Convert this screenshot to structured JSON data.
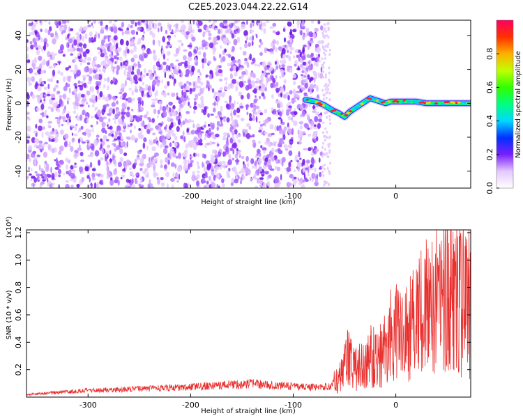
{
  "title": "C2E5.2023.044.22.22.G14",
  "colors": {
    "snr_line": "#e8302e",
    "spectrogram_hue_low": "#8a2be2"
  },
  "chart_data": [
    {
      "type": "heatmap",
      "id": "spectrogram",
      "xlabel": "Height of straight line (km)",
      "ylabel": "Frequency (Hz)",
      "xlim": [
        -360,
        73
      ],
      "ylim": [
        -50,
        49
      ],
      "x_ticks": [
        -300,
        -200,
        -100,
        0
      ],
      "y_ticks": [
        -40,
        -20,
        0,
        20,
        40
      ],
      "noise_region_end_km": -72,
      "signal_track": {
        "x": [
          -88,
          -78,
          -70,
          -62,
          -55,
          -50,
          -45,
          -40,
          -35,
          -30,
          -25,
          -20,
          -15,
          -10,
          -5,
          0,
          10,
          20,
          30,
          40,
          50,
          60,
          73
        ],
        "y": [
          2,
          1,
          -1,
          -4,
          -6,
          -8,
          -5,
          -3,
          -1,
          1,
          3,
          2,
          1,
          0,
          1,
          1,
          1,
          1,
          0,
          0,
          0,
          0,
          0
        ]
      },
      "grid": false
    },
    {
      "type": "colorbar",
      "id": "colorbar",
      "label": "Normalized spectral amplitude",
      "range": [
        0.0,
        1.0
      ],
      "ticks": [
        0.0,
        0.2,
        0.4,
        0.6,
        0.8
      ]
    },
    {
      "type": "line",
      "id": "snr",
      "xlabel": "Height of straight line (km)",
      "ylabel": "SNR (10 * v/v)",
      "y_multiplier": "(x10⁴)",
      "xlim": [
        -360,
        73
      ],
      "ylim": [
        0,
        1.22
      ],
      "x_ticks": [
        -300,
        -200,
        -100,
        0
      ],
      "y_ticks": [
        0.2,
        0.4,
        0.6,
        0.8,
        1.0,
        1.2
      ],
      "series": [
        {
          "x": [
            -360,
            -340,
            -320,
            -300,
            -280,
            -260,
            -240,
            -220,
            -200,
            -180,
            -160,
            -140,
            -120,
            -100,
            -80,
            -65,
            -55,
            -50,
            -45,
            -40,
            -35,
            -30,
            -25,
            -20,
            -15,
            -10,
            -5,
            0,
            5,
            10,
            15,
            20,
            25,
            30,
            35,
            40,
            45,
            50,
            55,
            60,
            65,
            70,
            73
          ],
          "y": [
            0.02,
            0.03,
            0.04,
            0.05,
            0.055,
            0.06,
            0.065,
            0.07,
            0.075,
            0.085,
            0.095,
            0.1,
            0.09,
            0.08,
            0.075,
            0.08,
            0.15,
            0.25,
            0.3,
            0.2,
            0.28,
            0.25,
            0.3,
            0.32,
            0.35,
            0.4,
            0.45,
            0.5,
            0.48,
            0.5,
            0.55,
            0.6,
            0.65,
            0.7,
            0.72,
            0.75,
            0.8,
            0.85,
            0.8,
            0.78,
            0.75,
            0.72,
            0.75
          ]
        }
      ],
      "grid": false
    }
  ]
}
